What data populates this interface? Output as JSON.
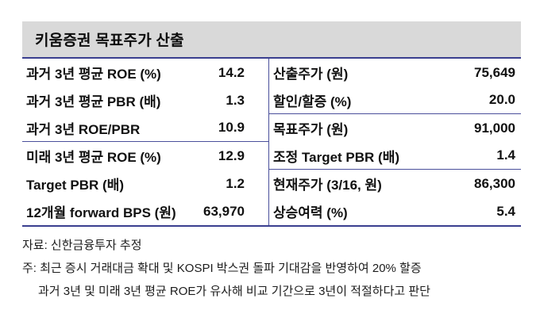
{
  "colors": {
    "title_bar_bg": "#d9d9d9",
    "line": "#4a4f9b",
    "line_strong": "#3a3f8f",
    "text": "#111111"
  },
  "title": "키움증권 목표주가 산출",
  "table": {
    "left_rows": [
      {
        "label": "과거 3년 평균 ROE (%)",
        "value": "14.2"
      },
      {
        "label": "과거 3년 평균 PBR (배)",
        "value": "1.3"
      },
      {
        "label": "과거 3년 ROE/PBR",
        "value": "10.9"
      },
      {
        "label": "미래 3년 평균 ROE (%)",
        "value": "12.9"
      },
      {
        "label": "Target PBR (배)",
        "value": "1.2"
      },
      {
        "label": "12개월 forward BPS (원)",
        "value": "63,970"
      }
    ],
    "right_rows": [
      {
        "label": "산출주가 (원)",
        "value": "75,649"
      },
      {
        "label": "할인/할증 (%)",
        "value": "20.0"
      },
      {
        "label": "목표주가 (원)",
        "value": "91,000"
      },
      {
        "label": "조정 Target PBR (배)",
        "value": "1.4"
      },
      {
        "label": "현재주가 (3/16, 원)",
        "value": "86,300"
      },
      {
        "label": "상승여력 (%)",
        "value": "5.4"
      }
    ]
  },
  "footnotes": {
    "source": "자료: 신한금융투자 추정",
    "note1": "주: 최근 증시 거래대금 확대 및 KOSPI 박스권 돌파 기대감을 반영하여 20% 할증",
    "note2": "과거 3년 및 미래 3년 평균 ROE가 유사해 비교 기간으로 3년이 적절하다고 판단"
  }
}
